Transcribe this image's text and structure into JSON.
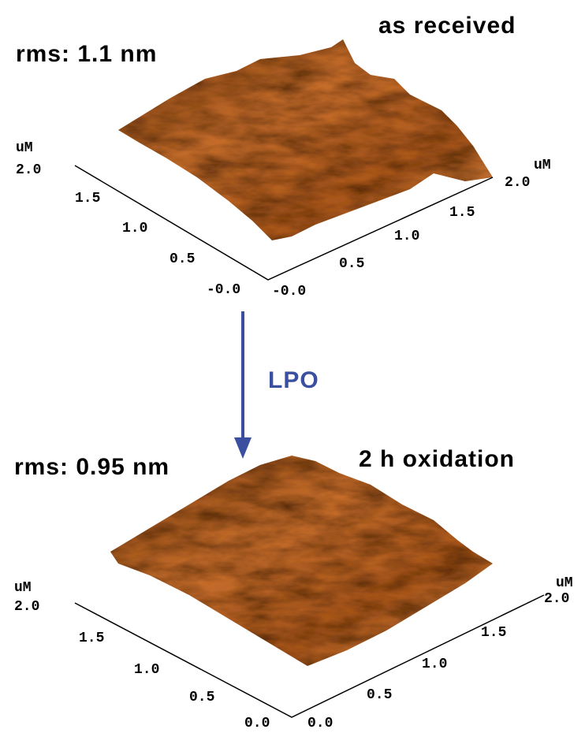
{
  "arrow_label": "LPO",
  "panels": [
    {
      "rms": "rms: 1.1 nm",
      "title": "as received",
      "left_axis": {
        "unit": "uM",
        "ticks": [
          "2.0",
          "1.5",
          "1.0",
          "0.5",
          "-0.0"
        ]
      },
      "right_axis": {
        "unit": "uM",
        "ticks": [
          "2.0",
          "1.5",
          "1.0",
          "0.5",
          "-0.0"
        ]
      }
    },
    {
      "rms": "rms: 0.95 nm",
      "title": "2 h oxidation",
      "left_axis": {
        "unit": "uM",
        "ticks": [
          "2.0",
          "1.5",
          "1.0",
          "0.5",
          "0.0"
        ]
      },
      "right_axis": {
        "unit": "uM",
        "ticks": [
          "2.0",
          "1.5",
          "1.0",
          "0.5",
          "0.0"
        ]
      }
    }
  ]
}
